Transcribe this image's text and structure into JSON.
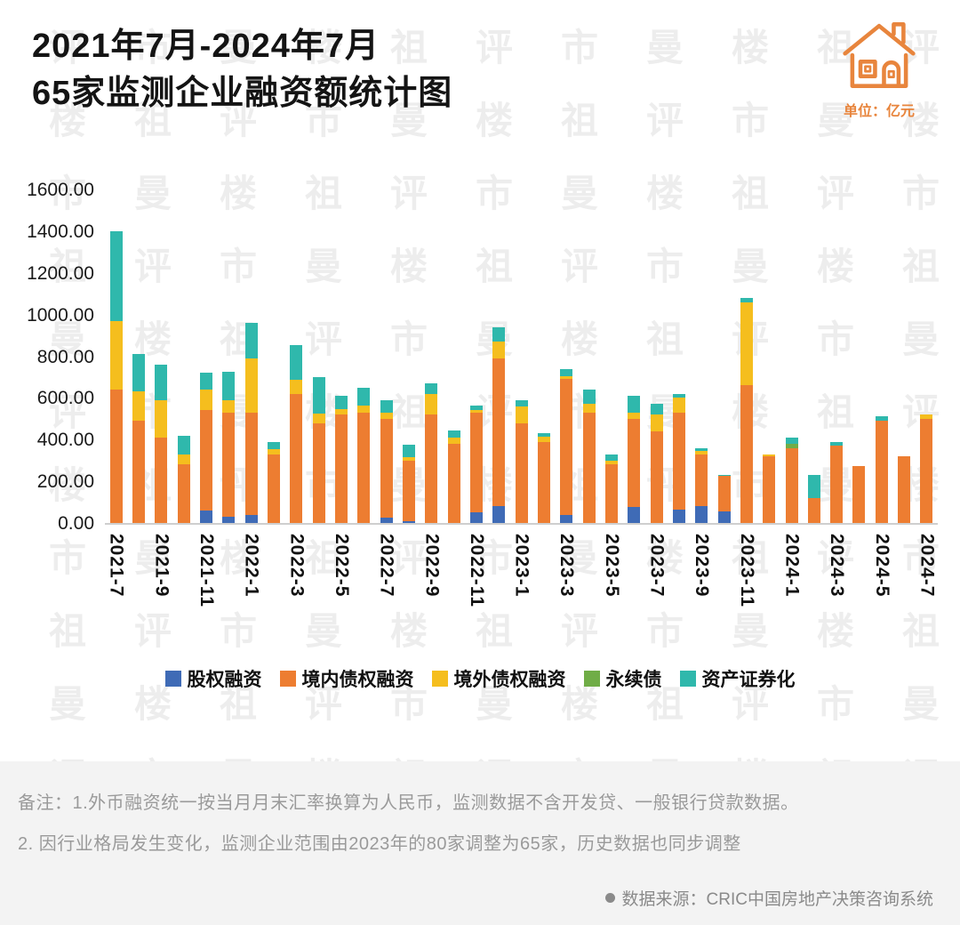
{
  "header": {
    "title_line1": "2021年7月-2024年7月",
    "title_line2": "65家监测企业融资额统计图",
    "unit_label": "单位：亿元"
  },
  "chart_data": {
    "type": "bar",
    "stacked": true,
    "title": "2021年7月-2024年7月 65家监测企业融资额统计图",
    "xlabel": "",
    "ylabel": "亿元",
    "ylim": [
      0,
      1600
    ],
    "grid": false,
    "legend_position": "bottom",
    "x_tick_step": 2,
    "y_ticks": [
      "0.00",
      "200.00",
      "400.00",
      "600.00",
      "800.00",
      "1000.00",
      "1200.00",
      "1400.00",
      "1600.00"
    ],
    "categories": [
      "2021-7",
      "2021-8",
      "2021-9",
      "2021-10",
      "2021-11",
      "2021-12",
      "2022-1",
      "2022-2",
      "2022-3",
      "2022-4",
      "2022-5",
      "2022-6",
      "2022-7",
      "2022-8",
      "2022-9",
      "2022-10",
      "2022-11",
      "2022-12",
      "2023-1",
      "2023-2",
      "2023-3",
      "2023-4",
      "2023-5",
      "2023-6",
      "2023-7",
      "2023-8",
      "2023-9",
      "2023-10",
      "2023-11",
      "2023-12",
      "2024-1",
      "2024-2",
      "2024-3",
      "2024-4",
      "2024-5",
      "2024-6",
      "2024-7"
    ],
    "series": [
      {
        "name": "股权融资",
        "color": "#3F6BB6",
        "values": [
          0,
          0,
          0,
          0,
          60,
          30,
          40,
          0,
          0,
          0,
          0,
          0,
          25,
          10,
          0,
          0,
          50,
          80,
          0,
          0,
          40,
          0,
          0,
          75,
          0,
          65,
          80,
          55,
          0,
          0,
          0,
          0,
          0,
          0,
          0,
          0,
          0
        ]
      },
      {
        "name": "境内债权融资",
        "color": "#ED7D31",
        "values": [
          640,
          490,
          410,
          280,
          480,
          500,
          490,
          330,
          620,
          480,
          520,
          530,
          475,
          290,
          520,
          380,
          480,
          710,
          480,
          390,
          650,
          530,
          280,
          425,
          440,
          465,
          250,
          170,
          660,
          320,
          360,
          120,
          370,
          275,
          490,
          320,
          500
        ]
      },
      {
        "name": "境外债权融资",
        "color": "#F5BE1E",
        "values": [
          330,
          140,
          180,
          50,
          100,
          60,
          260,
          25,
          65,
          45,
          25,
          35,
          30,
          15,
          100,
          30,
          10,
          80,
          80,
          25,
          15,
          40,
          20,
          30,
          80,
          70,
          15,
          0,
          400,
          10,
          0,
          0,
          0,
          0,
          0,
          0,
          20
        ]
      },
      {
        "name": "永续债",
        "color": "#70AD47",
        "values": [
          0,
          0,
          0,
          0,
          0,
          0,
          0,
          0,
          0,
          0,
          0,
          0,
          0,
          0,
          0,
          0,
          0,
          0,
          0,
          0,
          0,
          0,
          0,
          0,
          0,
          0,
          0,
          0,
          0,
          0,
          20,
          0,
          0,
          0,
          0,
          0,
          0
        ]
      },
      {
        "name": "资产证券化",
        "color": "#2FB8AC",
        "values": [
          430,
          180,
          170,
          90,
          80,
          135,
          170,
          35,
          170,
          175,
          65,
          85,
          60,
          60,
          50,
          35,
          25,
          70,
          30,
          15,
          35,
          70,
          30,
          80,
          50,
          20,
          15,
          5,
          20,
          0,
          30,
          110,
          20,
          0,
          20,
          0,
          0
        ]
      }
    ]
  },
  "notes": {
    "line1": "备注：1.外币融资统一按当月月末汇率换算为人民币，监测数据不含开发贷、一般银行贷款数据。",
    "line2": "2. 因行业格局发生变化，监测企业范围由2023年的80家调整为65家，历史数据也同步调整"
  },
  "source": {
    "text": "数据来源：CRIC中国房地产决策咨询系统"
  },
  "watermark": {
    "text": "评楼市祖曼"
  }
}
